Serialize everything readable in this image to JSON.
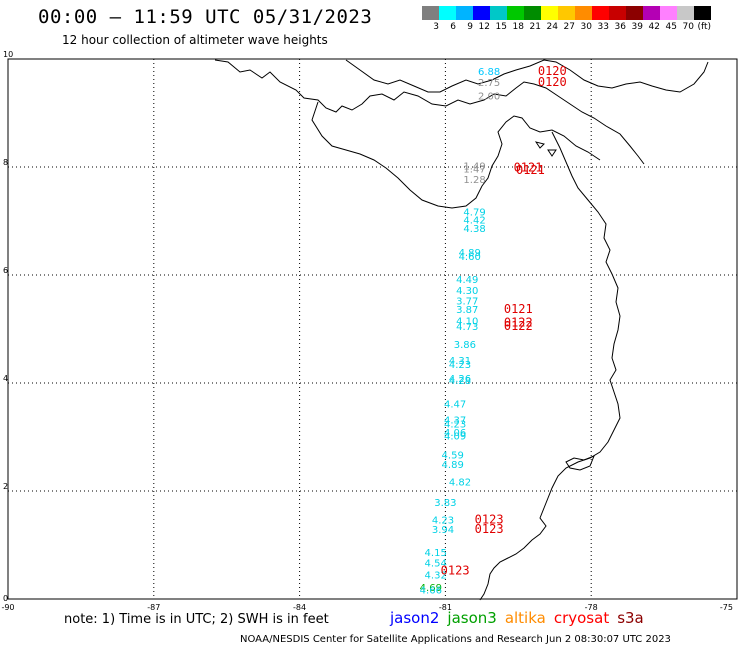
{
  "header": {
    "title": "00:00 – 11:59 UTC 05/31/2023",
    "subtitle": "12 hour collection of altimeter wave heights"
  },
  "colorbar": {
    "colors": [
      "#7f7f7f",
      "#00ffff",
      "#00b4ff",
      "#0000ff",
      "#00c8c8",
      "#00c800",
      "#008c00",
      "#ffff00",
      "#ffc800",
      "#ff8c00",
      "#ff0000",
      "#c80000",
      "#8c0000",
      "#b400b4",
      "#ff80ff",
      "#c8c8c8",
      "#000000"
    ],
    "labels": [
      "3",
      "6",
      "9",
      "12",
      "15",
      "18",
      "21",
      "24",
      "27",
      "30",
      "33",
      "36",
      "39",
      "42",
      "45",
      "70",
      "(ft)"
    ]
  },
  "footer": {
    "note": "note:  1) Time is in UTC;  2) SWH is in feet",
    "satellites": [
      {
        "name": "jason2",
        "color": "#0000ff"
      },
      {
        "name": "jason3",
        "color": "#00a000"
      },
      {
        "name": "altika",
        "color": "#ff8c00"
      },
      {
        "name": "cryosat",
        "color": "#ff0000"
      },
      {
        "name": "s3a",
        "color": "#8c0000"
      }
    ],
    "credit": "NOAA/NESDIS Center for Satellite Applications and Research     Jun  2 08:30:07 UTC 2023"
  },
  "chart_data": {
    "type": "scatter",
    "xlim": [
      -90,
      -75
    ],
    "ylim": [
      0,
      10
    ],
    "x_ticks": [
      "-90",
      "-87",
      "-84",
      "-81",
      "-78",
      "-75"
    ],
    "y_ticks": [
      "0",
      "2",
      "4",
      "6",
      "8",
      "10"
    ],
    "grid": true,
    "wave_heights": [
      {
        "lon": -80.1,
        "lat": 9.7,
        "value": "6.88",
        "color": "#00c8ff"
      },
      {
        "lon": -80.1,
        "lat": 9.5,
        "value": "2.75",
        "color": "#909090"
      },
      {
        "lon": -80.1,
        "lat": 9.25,
        "value": "2.00",
        "color": "#909090"
      },
      {
        "lon": -80.4,
        "lat": 7.95,
        "value": "1.49",
        "color": "#909090"
      },
      {
        "lon": -80.4,
        "lat": 7.9,
        "value": "1.47",
        "color": "#909090"
      },
      {
        "lon": -80.4,
        "lat": 7.7,
        "value": "1.28",
        "color": "#909090"
      },
      {
        "lon": -80.4,
        "lat": 7.1,
        "value": "4.79",
        "color": "#00d2e6"
      },
      {
        "lon": -80.4,
        "lat": 6.95,
        "value": "4.42",
        "color": "#00d2e6"
      },
      {
        "lon": -80.4,
        "lat": 6.8,
        "value": "4.38",
        "color": "#00d2e6"
      },
      {
        "lon": -80.5,
        "lat": 6.35,
        "value": "4.89",
        "color": "#00d2e6"
      },
      {
        "lon": -80.5,
        "lat": 6.28,
        "value": "4.60",
        "color": "#00d2e6"
      },
      {
        "lon": -80.55,
        "lat": 5.85,
        "value": "4.49",
        "color": "#00d2e6"
      },
      {
        "lon": -80.55,
        "lat": 5.65,
        "value": "4.30",
        "color": "#00d2e6"
      },
      {
        "lon": -80.55,
        "lat": 5.45,
        "value": "3.77",
        "color": "#00d2e6"
      },
      {
        "lon": -80.55,
        "lat": 5.3,
        "value": "3.87",
        "color": "#00d2e6"
      },
      {
        "lon": -80.55,
        "lat": 5.08,
        "value": "4.10",
        "color": "#00d2e6"
      },
      {
        "lon": -80.55,
        "lat": 4.98,
        "value": "4.73",
        "color": "#00d2e6"
      },
      {
        "lon": -80.6,
        "lat": 4.65,
        "value": "3.86",
        "color": "#00d2e6"
      },
      {
        "lon": -80.7,
        "lat": 4.35,
        "value": "4.31",
        "color": "#00d2e6"
      },
      {
        "lon": -80.7,
        "lat": 4.28,
        "value": "4.23",
        "color": "#00d2e6"
      },
      {
        "lon": -80.7,
        "lat": 4.02,
        "value": "4.26",
        "color": "#00d2e6"
      },
      {
        "lon": -80.7,
        "lat": 3.98,
        "value": "4.28",
        "color": "#00d2e6"
      },
      {
        "lon": -80.8,
        "lat": 3.55,
        "value": "4.47",
        "color": "#00d2e6"
      },
      {
        "lon": -80.8,
        "lat": 3.25,
        "value": "4.37",
        "color": "#00d2e6"
      },
      {
        "lon": -80.8,
        "lat": 3.18,
        "value": "4.23",
        "color": "#00d2e6"
      },
      {
        "lon": -80.8,
        "lat": 3.02,
        "value": "4.06",
        "color": "#00d2e6"
      },
      {
        "lon": -80.8,
        "lat": 2.95,
        "value": "4.09",
        "color": "#00d2e6"
      },
      {
        "lon": -80.85,
        "lat": 2.6,
        "value": "4.59",
        "color": "#00d2e6"
      },
      {
        "lon": -80.85,
        "lat": 2.43,
        "value": "4.89",
        "color": "#00d2e6"
      },
      {
        "lon": -80.7,
        "lat": 2.1,
        "value": "4.82",
        "color": "#00d2e6"
      },
      {
        "lon": -81.0,
        "lat": 1.72,
        "value": "3.83",
        "color": "#00d2e6"
      },
      {
        "lon": -81.05,
        "lat": 1.4,
        "value": "4.23",
        "color": "#00d2e6"
      },
      {
        "lon": -81.05,
        "lat": 1.22,
        "value": "3.94",
        "color": "#00d2e6"
      },
      {
        "lon": -81.2,
        "lat": 0.8,
        "value": "4.15",
        "color": "#00d2e6"
      },
      {
        "lon": -81.2,
        "lat": 0.6,
        "value": "4.54",
        "color": "#00d2e6"
      },
      {
        "lon": -81.2,
        "lat": 0.38,
        "value": "4.32",
        "color": "#00d2e6"
      },
      {
        "lon": -81.3,
        "lat": 0.15,
        "value": "4.69",
        "color": "#00b000"
      },
      {
        "lon": -81.3,
        "lat": 0.1,
        "value": "4.66",
        "color": "#00d2e6"
      }
    ],
    "times": [
      {
        "lon": -78.8,
        "lat": 9.7,
        "value": "0120",
        "color": "#e00000"
      },
      {
        "lon": -78.8,
        "lat": 9.5,
        "value": "0120",
        "color": "#e00000"
      },
      {
        "lon": -79.3,
        "lat": 7.92,
        "value": "0121",
        "color": "#e00000"
      },
      {
        "lon": -79.25,
        "lat": 7.87,
        "value": "0121",
        "color": "#e00000"
      },
      {
        "lon": -79.5,
        "lat": 5.3,
        "value": "0121",
        "color": "#e00000"
      },
      {
        "lon": -79.5,
        "lat": 5.05,
        "value": "0122",
        "color": "#e00000"
      },
      {
        "lon": -79.5,
        "lat": 4.98,
        "value": "0122",
        "color": "#e00000"
      },
      {
        "lon": -80.1,
        "lat": 1.4,
        "value": "0123",
        "color": "#e00000"
      },
      {
        "lon": -80.1,
        "lat": 1.22,
        "value": "0123",
        "color": "#e00000"
      },
      {
        "lon": -80.8,
        "lat": 0.45,
        "value": "0123",
        "color": "#e00000"
      }
    ]
  }
}
